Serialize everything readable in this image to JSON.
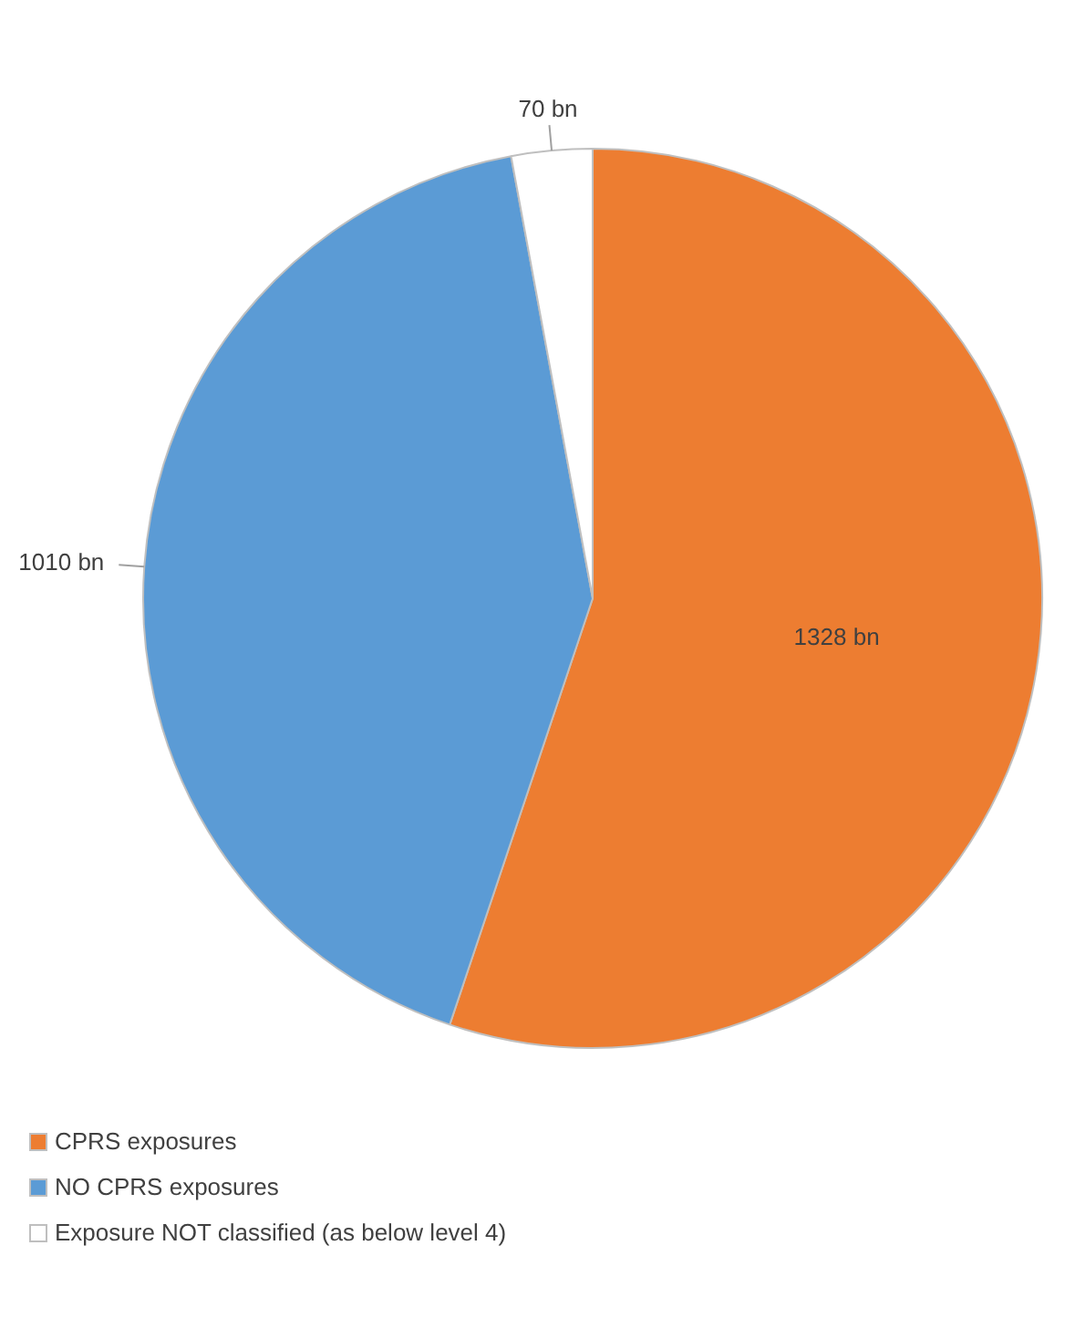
{
  "chart_data": {
    "type": "pie",
    "categories": [
      "CPRS exposures",
      "NO CPRS exposures",
      "Exposure NOT classified (as below level 4)"
    ],
    "values": [
      1328,
      1010,
      70
    ],
    "colors": [
      "#ed7d31",
      "#5b9bd5",
      "#ffffff"
    ],
    "value_labels": [
      "1328 bn",
      "1010 bn",
      "70 bn"
    ],
    "legend": "bottom left"
  }
}
